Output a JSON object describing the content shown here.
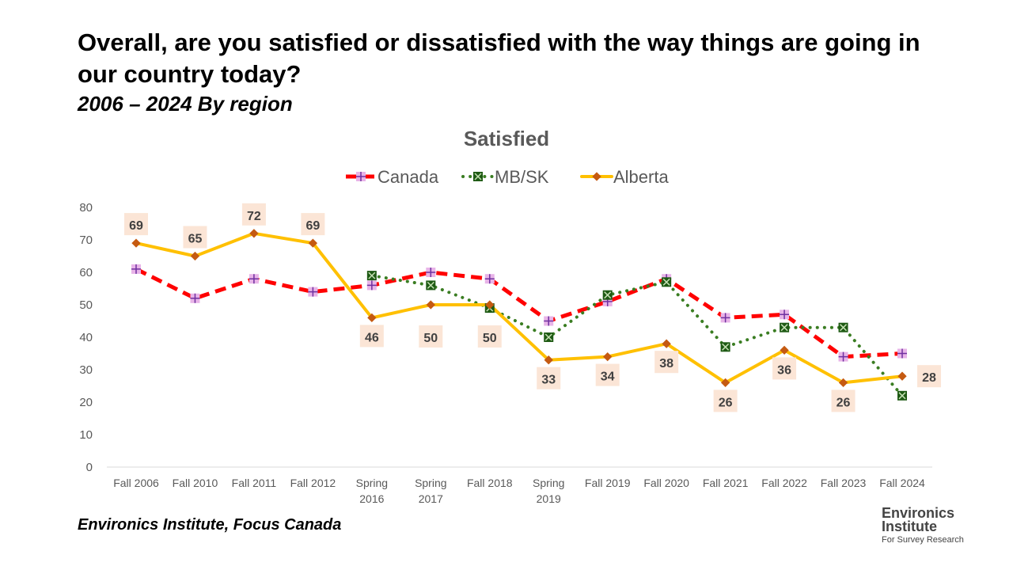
{
  "header": {
    "title": "Overall, are you satisfied or dissatisfied with the way things are going in our country today?",
    "subtitle": "2006 – 2024 By region"
  },
  "footer": {
    "source": "Environics Institute, Focus Canada",
    "logo_line1": "Environics",
    "logo_line2": "Institute",
    "logo_line3": "For Survey Research"
  },
  "chart_data": {
    "type": "line",
    "title": "Satisfied",
    "legend_position": "top",
    "categories": [
      "Fall 2006",
      "Fall 2010",
      "Fall 2011",
      "Fall 2012",
      "Spring 2016",
      "Spring 2017",
      "Fall 2018",
      "Spring 2019",
      "Fall 2019",
      "Fall 2020",
      "Fall 2021",
      "Fall 2022",
      "Fall 2023",
      "Fall 2024"
    ],
    "ylim": [
      0,
      80
    ],
    "yticks": [
      0,
      10,
      20,
      30,
      40,
      50,
      60,
      70,
      80
    ],
    "series": [
      {
        "name": "Canada",
        "color": "#ff0000",
        "values": [
          61,
          52,
          58,
          54,
          56,
          60,
          58,
          45,
          51,
          58,
          46,
          47,
          34,
          35
        ]
      },
      {
        "name": "MB/SK",
        "color": "#3a7d22",
        "values": [
          null,
          null,
          null,
          null,
          59,
          56,
          49,
          40,
          53,
          57,
          37,
          43,
          43,
          22
        ]
      },
      {
        "name": "Alberta",
        "color": "#ffc000",
        "values": [
          69,
          65,
          72,
          69,
          46,
          50,
          50,
          33,
          34,
          38,
          26,
          36,
          26,
          28
        ],
        "labels_shown": true
      }
    ]
  }
}
